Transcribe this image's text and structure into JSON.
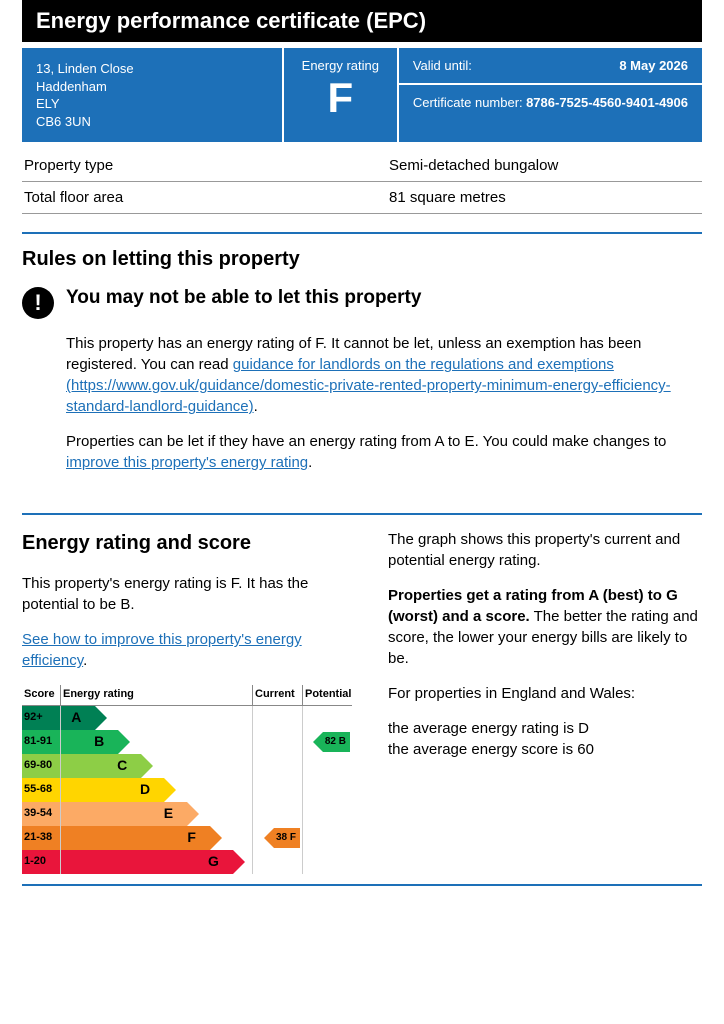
{
  "title": "Energy performance certificate (EPC)",
  "header": {
    "address_lines": [
      "13, Linden Close",
      "Haddenham",
      "ELY",
      "CB6 3UN"
    ],
    "rating_label": "Energy rating",
    "rating_letter": "F",
    "valid_label": "Valid until:",
    "valid_value": "8 May 2026",
    "cert_label": "Certificate number:",
    "cert_value": "8786-7525-4560-9401-4906"
  },
  "facts": [
    {
      "k": "Property type",
      "v": "Semi-detached bungalow"
    },
    {
      "k": "Total floor area",
      "v": "81 square metres"
    }
  ],
  "rules_heading": "Rules on letting this property",
  "warn_heading": "You may not be able to let this property",
  "warn_para1_a": "This property has an energy rating of F. It cannot be let, unless an exemption has been registered. You can read ",
  "warn_link1": "guidance for landlords on the regulations and exemptions (https://www.gov.uk/guidance/domestic-private-rented-property-minimum-energy-efficiency-standard-landlord-guidance)",
  "warn_para1_b": ".",
  "warn_para2_a": "Properties can be let if they have an energy rating from A to E. You could make changes to ",
  "warn_link2": "improve this property's energy rating",
  "warn_para2_b": ".",
  "section2": {
    "heading": "Energy rating and score",
    "left_p1": "This property's energy rating is F. It has the potential to be B.",
    "left_link": "See how to improve this property's energy efficiency",
    "right_p1": "The graph shows this property's current and potential energy rating.",
    "right_p2_bold": "Properties get a rating from A (best) to G (worst) and a score.",
    "right_p2_rest": " The better the rating and score, the lower your energy bills are likely to be.",
    "right_p3": "For properties in England and Wales:",
    "right_p4a": "the average energy rating is D",
    "right_p4b": "the average energy score is 60"
  },
  "chart": {
    "head": {
      "score": "Score",
      "rating": "Energy rating",
      "current": "Current",
      "potential": "Potential"
    },
    "bands": [
      {
        "range": "92+",
        "letter": "A",
        "width_pct": 18,
        "color": "#008054"
      },
      {
        "range": "81-91",
        "letter": "B",
        "width_pct": 30,
        "color": "#19b459"
      },
      {
        "range": "69-80",
        "letter": "C",
        "width_pct": 42,
        "color": "#8dce46"
      },
      {
        "range": "55-68",
        "letter": "D",
        "width_pct": 54,
        "color": "#ffd500"
      },
      {
        "range": "39-54",
        "letter": "E",
        "width_pct": 66,
        "color": "#fcaa65"
      },
      {
        "range": "21-38",
        "letter": "F",
        "width_pct": 78,
        "color": "#ef8023"
      },
      {
        "range": "1-20",
        "letter": "G",
        "width_pct": 90,
        "color": "#e9153b"
      }
    ],
    "current": {
      "band": "F",
      "score": 38,
      "label": "38  F",
      "color": "#ef8023"
    },
    "potential": {
      "band": "B",
      "score": 82,
      "label": "82  B",
      "color": "#19b459"
    }
  }
}
